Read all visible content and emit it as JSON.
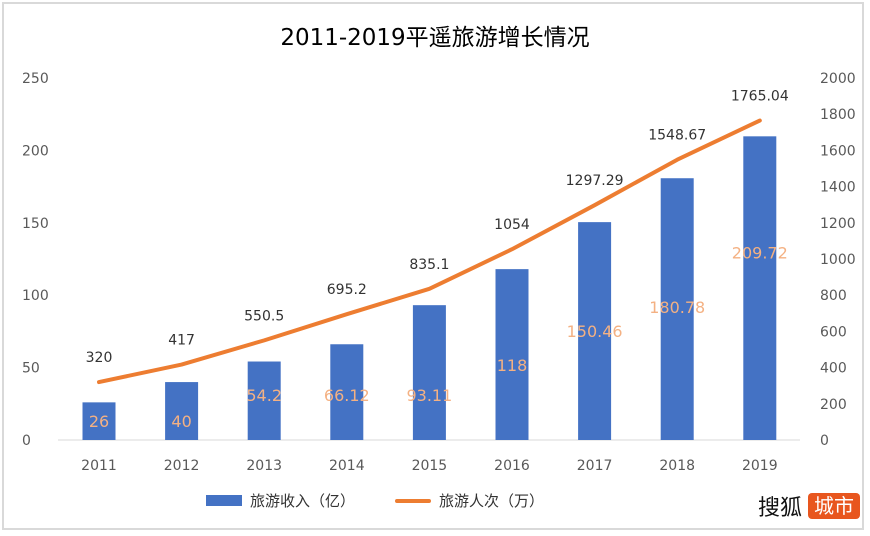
{
  "chart_data": {
    "type": "bar+line",
    "title": "2011-2019平遥旅游增长情况",
    "categories": [
      "2011",
      "2012",
      "2013",
      "2014",
      "2015",
      "2016",
      "2017",
      "2018",
      "2019"
    ],
    "series": [
      {
        "name": "旅游收入（亿）",
        "type": "bar",
        "axis": "left",
        "color": "#4472c4",
        "label_color": "#f4b183",
        "values": [
          26,
          40,
          54.2,
          66.12,
          93.11,
          118,
          150.46,
          180.78,
          209.72
        ],
        "labels": [
          "26",
          "40",
          "54.2",
          "66.12",
          "93.11",
          "118",
          "150.46",
          "180.78",
          "209.72"
        ]
      },
      {
        "name": "旅游人次（万）",
        "type": "line",
        "axis": "right",
        "color": "#ed7d31",
        "label_color": "#333333",
        "values": [
          320,
          417,
          550.5,
          695.2,
          835.1,
          1054,
          1297.29,
          1548.67,
          1765.04
        ],
        "labels": [
          "320",
          "417",
          "550.5",
          "695.2",
          "835.1",
          "1054",
          "1297.29",
          "1548.67",
          "1765.04"
        ]
      }
    ],
    "y_left": {
      "ylim": [
        0,
        250
      ],
      "ticks": [
        "0",
        "50",
        "100",
        "150",
        "200",
        "250"
      ]
    },
    "y_right": {
      "ylim": [
        0,
        2000
      ],
      "ticks": [
        "0",
        "200",
        "400",
        "600",
        "800",
        "1000",
        "1200",
        "1400",
        "1600",
        "1800",
        "2000"
      ]
    },
    "grid": false,
    "legend": "bottom"
  },
  "watermark": {
    "brand": "搜狐",
    "badge": "城市",
    "badge_color": "#e8561e"
  }
}
